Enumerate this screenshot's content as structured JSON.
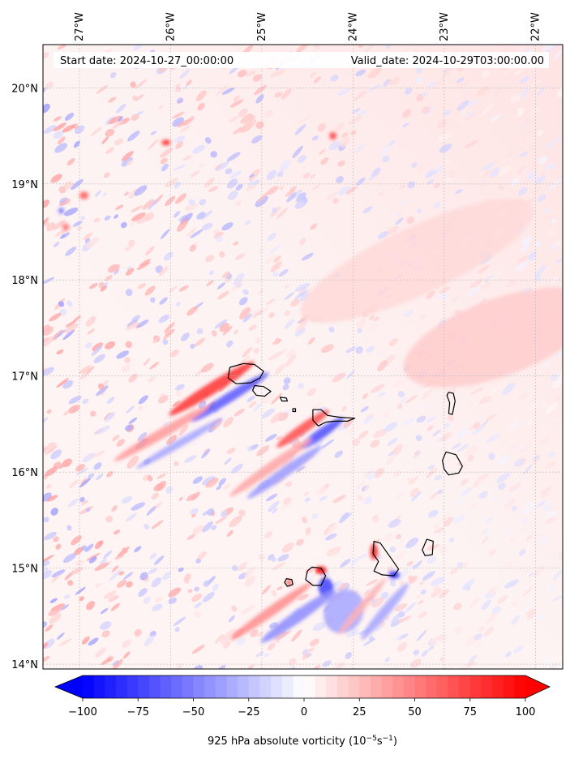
{
  "header": {
    "start_date": "Start date: 2024-10-27_00:00:00",
    "valid_date": "Valid_date: 2024-10-29T03:00:00.00"
  },
  "map": {
    "lon_range": [
      -27.4,
      -21.7
    ],
    "lat_range": [
      13.95,
      20.45
    ],
    "lon_ticks": [
      {
        "value": -27,
        "label": "27°W"
      },
      {
        "value": -26,
        "label": "26°W"
      },
      {
        "value": -25,
        "label": "25°W"
      },
      {
        "value": -24,
        "label": "24°W"
      },
      {
        "value": -23,
        "label": "23°W"
      },
      {
        "value": -22,
        "label": "22°W"
      }
    ],
    "lat_ticks": [
      {
        "value": 20,
        "label": "20°N"
      },
      {
        "value": 19,
        "label": "19°N"
      },
      {
        "value": 18,
        "label": "18°N"
      },
      {
        "value": 17,
        "label": "17°N"
      },
      {
        "value": 16,
        "label": "16°N"
      },
      {
        "value": 15,
        "label": "15°N"
      },
      {
        "value": 14,
        "label": "14°N"
      }
    ],
    "islands": [
      {
        "name": "Santo Antao",
        "coords": [
          [
            -25.35,
            17.09
          ],
          [
            -25.2,
            17.13
          ],
          [
            -25.08,
            17.12
          ],
          [
            -24.98,
            17.05
          ],
          [
            -25.02,
            16.98
          ],
          [
            -25.12,
            16.93
          ],
          [
            -25.28,
            16.92
          ],
          [
            -25.37,
            16.98
          ]
        ]
      },
      {
        "name": "Sao Vicente",
        "coords": [
          [
            -25.08,
            16.9
          ],
          [
            -24.98,
            16.89
          ],
          [
            -24.9,
            16.84
          ],
          [
            -24.97,
            16.79
          ],
          [
            -25.06,
            16.8
          ],
          [
            -25.1,
            16.85
          ]
        ]
      },
      {
        "name": "Santa Luzia",
        "coords": [
          [
            -24.8,
            16.78
          ],
          [
            -24.73,
            16.77
          ],
          [
            -24.72,
            16.74
          ],
          [
            -24.78,
            16.74
          ]
        ]
      },
      {
        "name": "Branco",
        "coords": [
          [
            -24.66,
            16.66
          ],
          [
            -24.63,
            16.66
          ],
          [
            -24.63,
            16.63
          ],
          [
            -24.66,
            16.63
          ]
        ]
      },
      {
        "name": "Sao Nicolau",
        "coords": [
          [
            -24.44,
            16.65
          ],
          [
            -24.35,
            16.65
          ],
          [
            -24.28,
            16.59
          ],
          [
            -24.14,
            16.57
          ],
          [
            -23.98,
            16.56
          ],
          [
            -24.06,
            16.53
          ],
          [
            -24.2,
            16.53
          ],
          [
            -24.3,
            16.52
          ],
          [
            -24.38,
            16.48
          ],
          [
            -24.44,
            16.54
          ]
        ]
      },
      {
        "name": "Sal",
        "coords": [
          [
            -22.95,
            16.83
          ],
          [
            -22.9,
            16.82
          ],
          [
            -22.88,
            16.74
          ],
          [
            -22.91,
            16.6
          ],
          [
            -22.95,
            16.61
          ],
          [
            -22.94,
            16.72
          ],
          [
            -22.97,
            16.8
          ]
        ]
      },
      {
        "name": "Boa Vista",
        "coords": [
          [
            -22.98,
            16.21
          ],
          [
            -22.87,
            16.18
          ],
          [
            -22.8,
            16.06
          ],
          [
            -22.84,
            15.99
          ],
          [
            -22.95,
            15.97
          ],
          [
            -23.0,
            16.03
          ],
          [
            -23.02,
            16.12
          ]
        ]
      },
      {
        "name": "Maio",
        "coords": [
          [
            -23.19,
            15.3
          ],
          [
            -23.12,
            15.28
          ],
          [
            -23.13,
            15.14
          ],
          [
            -23.21,
            15.13
          ],
          [
            -23.24,
            15.19
          ]
        ]
      },
      {
        "name": "Santiago",
        "coords": [
          [
            -23.77,
            15.28
          ],
          [
            -23.7,
            15.26
          ],
          [
            -23.64,
            15.18
          ],
          [
            -23.58,
            15.1
          ],
          [
            -23.5,
            14.99
          ],
          [
            -23.55,
            14.92
          ],
          [
            -23.68,
            14.93
          ],
          [
            -23.77,
            14.97
          ],
          [
            -23.72,
            15.07
          ],
          [
            -23.78,
            15.15
          ]
        ]
      },
      {
        "name": "Fogo",
        "coords": [
          [
            -24.45,
            15.01
          ],
          [
            -24.35,
            15.0
          ],
          [
            -24.3,
            14.92
          ],
          [
            -24.35,
            14.82
          ],
          [
            -24.44,
            14.82
          ],
          [
            -24.52,
            14.88
          ],
          [
            -24.5,
            14.97
          ]
        ]
      },
      {
        "name": "Brava",
        "coords": [
          [
            -24.73,
            14.89
          ],
          [
            -24.67,
            14.88
          ],
          [
            -24.66,
            14.83
          ],
          [
            -24.72,
            14.81
          ],
          [
            -24.75,
            14.85
          ]
        ]
      }
    ],
    "vorticity_features": [
      {
        "lon": -25.55,
        "lat": 16.87,
        "value": 80,
        "sx": 0.55,
        "sy": 0.06,
        "angle": -32
      },
      {
        "lon": -25.35,
        "lat": 16.78,
        "value": -65,
        "sx": 0.5,
        "sy": 0.05,
        "angle": -32
      },
      {
        "lon": -26.1,
        "lat": 16.4,
        "value": 40,
        "sx": 0.6,
        "sy": 0.05,
        "angle": -30
      },
      {
        "lon": -25.9,
        "lat": 16.3,
        "value": -35,
        "sx": 0.55,
        "sy": 0.04,
        "angle": -30
      },
      {
        "lon": -24.55,
        "lat": 16.45,
        "value": 70,
        "sx": 0.35,
        "sy": 0.05,
        "angle": -35
      },
      {
        "lon": -24.35,
        "lat": 16.4,
        "value": -70,
        "sx": 0.3,
        "sy": 0.05,
        "angle": -35
      },
      {
        "lon": -24.9,
        "lat": 16.05,
        "value": 35,
        "sx": 0.55,
        "sy": 0.05,
        "angle": -35
      },
      {
        "lon": -24.75,
        "lat": 16.0,
        "value": -40,
        "sx": 0.5,
        "sy": 0.05,
        "angle": -35
      },
      {
        "lon": -24.35,
        "lat": 14.98,
        "value": 100,
        "sx": 0.06,
        "sy": 0.04,
        "angle": 0
      },
      {
        "lon": -24.3,
        "lat": 14.8,
        "value": -75,
        "sx": 0.08,
        "sy": 0.1,
        "angle": 0
      },
      {
        "lon": -24.9,
        "lat": 14.55,
        "value": 45,
        "sx": 0.55,
        "sy": 0.05,
        "angle": -35
      },
      {
        "lon": -24.6,
        "lat": 14.5,
        "value": -45,
        "sx": 0.5,
        "sy": 0.06,
        "angle": -35
      },
      {
        "lon": -24.1,
        "lat": 14.55,
        "value": -35,
        "sx": 0.25,
        "sy": 0.2,
        "angle": -60
      },
      {
        "lon": -24.7,
        "lat": 14.85,
        "value": 70,
        "sx": 0.03,
        "sy": 0.03,
        "angle": 0
      },
      {
        "lon": -23.77,
        "lat": 15.17,
        "value": 90,
        "sx": 0.04,
        "sy": 0.08,
        "angle": 0
      },
      {
        "lon": -23.55,
        "lat": 14.93,
        "value": -85,
        "sx": 0.06,
        "sy": 0.04,
        "angle": 0
      },
      {
        "lon": -23.65,
        "lat": 14.55,
        "value": -35,
        "sx": 0.4,
        "sy": 0.05,
        "angle": -50
      },
      {
        "lon": -23.9,
        "lat": 14.6,
        "value": 30,
        "sx": 0.4,
        "sy": 0.04,
        "angle": -50
      },
      {
        "lon": -26.05,
        "lat": 19.43,
        "value": 85,
        "sx": 0.05,
        "sy": 0.03,
        "angle": 0
      },
      {
        "lon": -24.22,
        "lat": 19.5,
        "value": 75,
        "sx": 0.04,
        "sy": 0.04,
        "angle": 0
      },
      {
        "lon": -26.95,
        "lat": 18.88,
        "value": 65,
        "sx": 0.05,
        "sy": 0.04,
        "angle": 0
      },
      {
        "lon": -27.2,
        "lat": 18.72,
        "value": -60,
        "sx": 0.03,
        "sy": 0.03,
        "angle": 0
      },
      {
        "lon": -27.15,
        "lat": 18.55,
        "value": 55,
        "sx": 0.04,
        "sy": 0.04,
        "angle": 0
      },
      {
        "lon": -22.4,
        "lat": 17.4,
        "value": 20,
        "sx": 1.1,
        "sy": 0.4,
        "angle": -20
      },
      {
        "lon": -23.3,
        "lat": 18.2,
        "value": 15,
        "sx": 1.4,
        "sy": 0.35,
        "angle": -25
      }
    ]
  },
  "colorbar": {
    "tick_values": [
      -100,
      -75,
      -50,
      -25,
      0,
      25,
      50,
      75,
      100
    ],
    "tick_labels": [
      "−100",
      "−75",
      "−50",
      "−25",
      "0",
      "25",
      "50",
      "75",
      "100"
    ],
    "range": [
      -100,
      100
    ],
    "levels": 40,
    "label": "925 hPa absolute vorticity (10⁻⁵s⁻¹)",
    "colormap": "bwr",
    "neg_color": "#0000ff",
    "pos_color": "#ff0000"
  }
}
